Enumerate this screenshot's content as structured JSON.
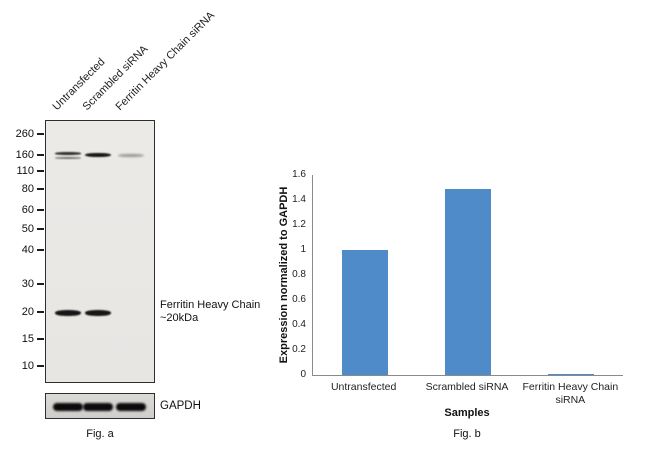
{
  "fig_a": {
    "caption": "Fig. a",
    "lane_labels": [
      "Untransfected",
      "Scrambled siRNA",
      "Ferritin Heavy Chain siRNA"
    ],
    "mw_markers": [
      "260",
      "160",
      "110",
      "80",
      "60",
      "50",
      "40",
      "30",
      "20",
      "15",
      "10"
    ],
    "bands": [
      {
        "lane": 0,
        "kda": "160",
        "intensity": "double"
      },
      {
        "lane": 1,
        "kda": "160",
        "intensity": "strong"
      },
      {
        "lane": 2,
        "kda": "160",
        "intensity": "faint"
      },
      {
        "lane": 0,
        "kda": "20",
        "intensity": "strong"
      },
      {
        "lane": 1,
        "kda": "20",
        "intensity": "strong"
      }
    ],
    "band_annotation": {
      "line1": "Ferritin Heavy Chain",
      "line2": "~20kDa"
    },
    "loading_control_label": "GAPDH"
  },
  "chart_data": {
    "type": "bar",
    "categories": [
      "Untransfected",
      "Scrambled siRNA",
      "Ferritin Heavy Chain siRNA"
    ],
    "values": [
      1.0,
      1.49,
      0.01
    ],
    "xlabel": "Samples",
    "ylabel": "Expression normalized to GAPDH",
    "ylim": [
      0,
      1.6
    ],
    "ytick_step": 0.2,
    "bar_color": "#4f8bc9",
    "grid": false,
    "legend_position": "none"
  },
  "fig_b": {
    "caption": "Fig. b"
  }
}
